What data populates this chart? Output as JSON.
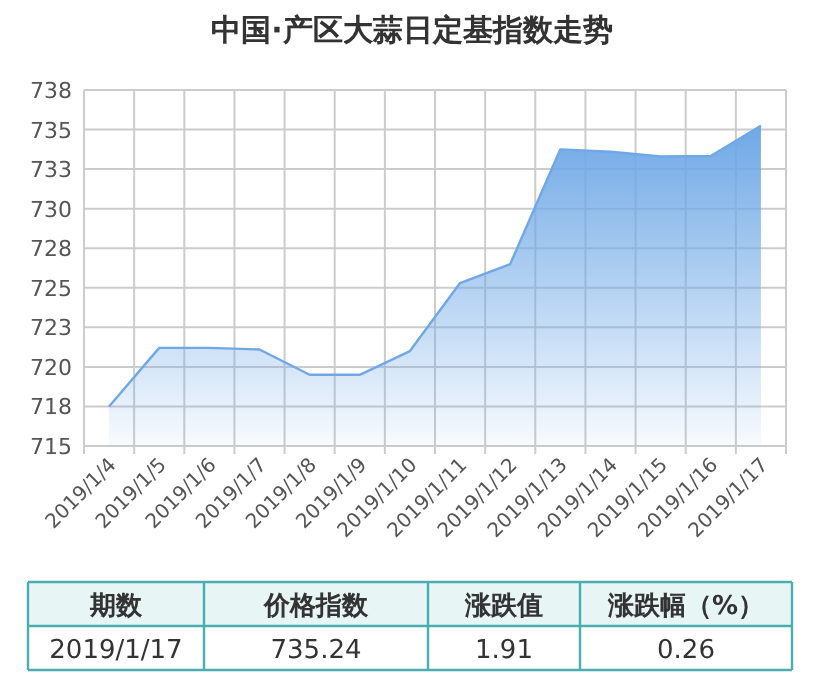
{
  "chart_data": {
    "type": "area",
    "title": "中国·产区大蒜日定基指数走势",
    "categories": [
      "2019/1/4",
      "2019/1/5",
      "2019/1/6",
      "2019/1/7",
      "2019/1/8",
      "2019/1/9",
      "2019/1/10",
      "2019/1/11",
      "2019/1/12",
      "2019/1/13",
      "2019/1/14",
      "2019/1/15",
      "2019/1/16",
      "2019/1/17"
    ],
    "values": [
      717.5,
      721.2,
      721.2,
      721.1,
      719.5,
      719.5,
      721,
      725.3,
      726.5,
      733.75,
      733.6,
      733.3,
      733.33,
      735.24
    ],
    "color": "#6fa8e6",
    "ylim": [
      715,
      737.5
    ],
    "yticks": [
      715,
      {
        "value": 717.5,
        "label": "718"
      },
      720,
      {
        "value": 722.5,
        "label": "723"
      },
      725,
      {
        "value": 727.5,
        "label": "728"
      },
      730,
      {
        "value": 732.5,
        "label": "733"
      },
      735,
      {
        "value": 737.5,
        "label": "738"
      }
    ],
    "grid": true,
    "annotations": [
      "期数",
      "价格指数",
      "涨跌值",
      "涨跌幅（%）",
      "2019/1/17",
      "735.24",
      "1.91",
      "0.26"
    ]
  }
}
